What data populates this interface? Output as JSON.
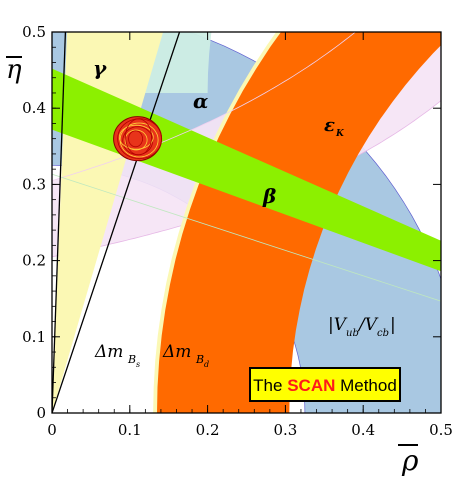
{
  "chart_data": {
    "type": "contour",
    "xlabel": "ρ",
    "ylabel": "η",
    "xlim": [
      0,
      0.5
    ],
    "ylim": [
      0,
      0.5
    ],
    "x_ticks": [
      "0",
      "0.1",
      "0.2",
      "0.3",
      "0.4",
      "0.5"
    ],
    "y_ticks": [
      "0",
      "0.1",
      "0.2",
      "0.3",
      "0.4",
      "0.5"
    ],
    "constraint_labels": {
      "gamma": "γ",
      "alpha": "α",
      "beta": "β",
      "epsilon_k": "ε",
      "epsilon_k_sub": "K",
      "dms_main": "Δm",
      "dms_sub": "B",
      "dms_subsub": "s",
      "dmd_main": "Δm",
      "dmd_sub": "B",
      "dmd_subsub": "d",
      "vub_vcb_1": "|V",
      "vub_vcb_1_sub": "ub",
      "vub_vcb_2": "/V",
      "vub_vcb_2_sub": "cb",
      "vub_vcb_3": "|"
    },
    "fit_center": {
      "rho": 0.11,
      "eta": 0.36
    },
    "colors": {
      "vub_vcb": "#a9c8e2",
      "epsilon_k": "#f5e4f5",
      "alpha": "#cdeee4",
      "gamma": "#fbf8b4",
      "dm_bd": "#fbf8b4",
      "dm_bs": "#ff6a00",
      "beta": "#8cf000",
      "fit": "#e8341a",
      "badge_bg": "#ffff00",
      "badge_accent": "#ff1a1a"
    }
  },
  "badge": {
    "part1": "The ",
    "part2": "SCAN",
    "part3": " Method"
  }
}
